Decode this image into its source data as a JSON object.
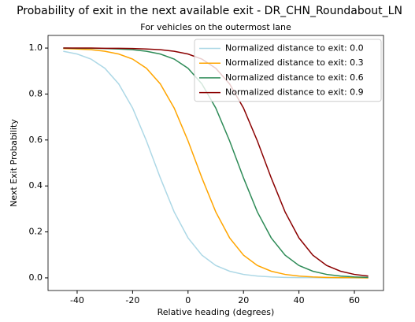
{
  "chart_data": {
    "type": "line",
    "title": "Probability of exit in the next available exit - DR_CHN_Roundabout_LN",
    "subtitle": "For vehicles on the outermost lane",
    "x_label": "Relative heading (degrees)",
    "y_label": "Next Exit Probability",
    "x": [
      -45,
      -40,
      -35,
      -30,
      -25,
      -20,
      -15,
      -10,
      -5,
      0,
      5,
      10,
      15,
      20,
      25,
      30,
      35,
      40,
      45,
      50,
      55,
      60,
      65
    ],
    "series": [
      {
        "name": "Normalized distance to exit: 0.0",
        "color": "#add8e6",
        "values": [
          0.986,
          0.974,
          0.952,
          0.912,
          0.844,
          0.739,
          0.596,
          0.435,
          0.287,
          0.174,
          0.099,
          0.054,
          0.029,
          0.015,
          0.008,
          0.004,
          0.002,
          0.001,
          0.001,
          0.0,
          0.0,
          0.0,
          0.0
        ]
      },
      {
        "name": "Normalized distance to exit: 0.3",
        "color": "#ffa500",
        "values": [
          0.998,
          0.996,
          0.993,
          0.986,
          0.974,
          0.952,
          0.912,
          0.844,
          0.739,
          0.596,
          0.435,
          0.287,
          0.174,
          0.099,
          0.054,
          0.029,
          0.015,
          0.008,
          0.004,
          0.002,
          0.001,
          0.001,
          0.0
        ]
      },
      {
        "name": "Normalized distance to exit: 0.6",
        "color": "#2e8b57",
        "values": [
          1.0,
          0.999,
          0.999,
          0.998,
          0.996,
          0.993,
          0.986,
          0.974,
          0.952,
          0.912,
          0.844,
          0.739,
          0.596,
          0.435,
          0.287,
          0.174,
          0.099,
          0.054,
          0.029,
          0.015,
          0.008,
          0.004,
          0.002
        ]
      },
      {
        "name": "Normalized distance to exit: 0.9",
        "color": "#8b0000",
        "values": [
          1.0,
          1.0,
          1.0,
          0.999,
          0.999,
          0.998,
          0.996,
          0.993,
          0.986,
          0.974,
          0.952,
          0.912,
          0.844,
          0.739,
          0.596,
          0.435,
          0.287,
          0.174,
          0.099,
          0.054,
          0.029,
          0.015,
          0.008
        ]
      }
    ],
    "xlim": [
      -50.5,
      70.5
    ],
    "ylim": [
      -0.055,
      1.055
    ],
    "xticks": [
      -40,
      -20,
      0,
      20,
      40,
      60
    ],
    "yticks": [
      {
        "value": 0,
        "label": "0.0"
      },
      0.2,
      0.4,
      0.6,
      0.8,
      {
        "value": 1,
        "label": "1.0"
      }
    ],
    "grid": false,
    "legend": "upper right"
  }
}
